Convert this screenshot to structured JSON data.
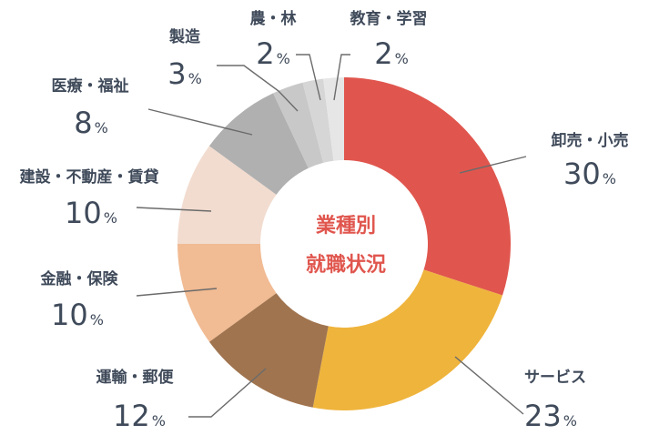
{
  "chart_data": {
    "type": "pie",
    "title": "業種別就職状況",
    "title_lines": [
      "業種別",
      "就職状況"
    ],
    "unit": "%",
    "slices": [
      {
        "label": "卸売・小売",
        "value": 30,
        "color": "#e0564e"
      },
      {
        "label": "サービス",
        "value": 23,
        "color": "#efb43c"
      },
      {
        "label": "運輸・郵便",
        "value": 12,
        "color": "#a0744f"
      },
      {
        "label": "金融・保険",
        "value": 10,
        "color": "#f1bb93"
      },
      {
        "label": "建設・不動産・賃貸",
        "value": 10,
        "color": "#f2dccf"
      },
      {
        "label": "医療・福祉",
        "value": 8,
        "color": "#b0b0b0"
      },
      {
        "label": "製造",
        "value": 3,
        "color": "#c8c8c8"
      },
      {
        "label": "農・林",
        "value": 2,
        "color": "#d6d6d6"
      },
      {
        "label": "教育・学習",
        "value": 2,
        "color": "#e6e6e6"
      }
    ],
    "legend": "outside labels with leader lines",
    "center_color": "#e0564e"
  }
}
